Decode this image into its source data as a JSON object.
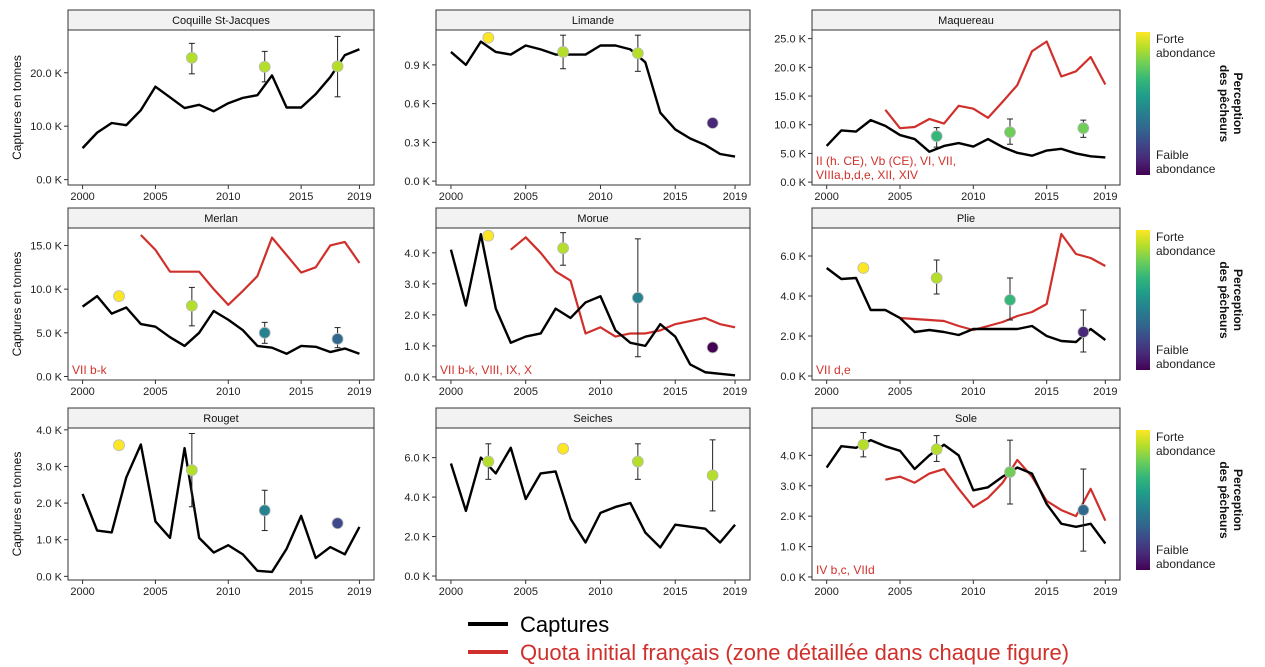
{
  "legend": {
    "captures_label": "Captures",
    "quota_label": "Quota initial français (zone détaillée dans chaque figure)",
    "captures_color": "#000000",
    "quota_color": "#d0302b",
    "colorbar_title": "Perception des pêcheurs",
    "colorbar_title_line1": "Perception",
    "colorbar_title_line2": "des pêcheurs",
    "colorbar_high": "Forte abondance",
    "colorbar_high_line1": "Forte",
    "colorbar_high_line2": "abondance",
    "colorbar_low": "Faible abondance",
    "colorbar_low_line1": "Faible",
    "colorbar_low_line2": "abondance",
    "colorbar_colors": [
      "#fde725",
      "#b5de2b",
      "#6ece58",
      "#35b779",
      "#1f9e89",
      "#26828e",
      "#31688e",
      "#3e4989",
      "#482878",
      "#440154"
    ]
  },
  "y_axis_label": "Captures en tonnes",
  "chart_data": [
    {
      "type": "line",
      "title": "Coquille St-Jacques",
      "zone": "",
      "x_ticks": [
        "2000",
        "2005",
        "2010",
        "2015",
        "2019"
      ],
      "y_ticks": [
        0,
        10000,
        20000
      ],
      "y_tick_labels": [
        "0.0 K",
        "10.0 K",
        "20.0 K"
      ],
      "ylim": [
        -1000,
        28000
      ],
      "captures": {
        "x": [
          2000,
          2001,
          2002,
          2003,
          2004,
          2005,
          2006,
          2007,
          2008,
          2009,
          2010,
          2011,
          2012,
          2013,
          2014,
          2015,
          2016,
          2017,
          2018,
          2019
        ],
        "values": [
          5900,
          8800,
          10600,
          10200,
          13000,
          17400,
          15400,
          13400,
          14000,
          12800,
          14300,
          15300,
          15800,
          19500,
          13500,
          13500,
          16000,
          19200,
          23300,
          24400
        ]
      },
      "quota": null,
      "perception": [
        {
          "x": 2007.5,
          "value": 22800,
          "low": 19800,
          "high": 25500,
          "level": 0.85
        },
        {
          "x": 2012.5,
          "value": 21100,
          "low": 18300,
          "high": 24000,
          "level": 0.85
        },
        {
          "x": 2017.5,
          "value": 21200,
          "low": 15500,
          "high": 26800,
          "level": 0.85
        }
      ]
    },
    {
      "type": "line",
      "title": "Limande",
      "zone": "",
      "x_ticks": [
        "2000",
        "2005",
        "2010",
        "2015",
        "2019"
      ],
      "y_ticks": [
        0,
        300,
        600,
        900
      ],
      "y_tick_labels": [
        "0.0 K",
        "0.3 K",
        "0.6 K",
        "0.9 K"
      ],
      "ylim": [
        -30,
        1170
      ],
      "captures": {
        "x": [
          2000,
          2001,
          2002,
          2003,
          2004,
          2005,
          2006,
          2007,
          2008,
          2009,
          2010,
          2011,
          2012,
          2013,
          2014,
          2015,
          2016,
          2017,
          2018,
          2019
        ],
        "values": [
          1000,
          900,
          1080,
          1000,
          980,
          1050,
          1020,
          980,
          980,
          980,
          1050,
          1050,
          1020,
          920,
          530,
          400,
          330,
          280,
          210,
          190
        ]
      },
      "quota": null,
      "perception": [
        {
          "x": 2002.5,
          "value": 1110,
          "low": null,
          "high": null,
          "level": 1.0
        },
        {
          "x": 2007.5,
          "value": 1000,
          "low": 870,
          "high": 1130,
          "level": 0.85
        },
        {
          "x": 2012.5,
          "value": 990,
          "low": 850,
          "high": 1130,
          "level": 0.85
        },
        {
          "x": 2017.5,
          "value": 450,
          "low": null,
          "high": null,
          "level": 0.1
        }
      ]
    },
    {
      "type": "line",
      "title": "Maquereau",
      "zone": "II (h. CE), Vb (CE), VI, VII, VIIIa,b,d,e, XII, XIV",
      "zone_line1": "II (h. CE), Vb (CE), VI, VII,",
      "zone_line2": "VIIIa,b,d,e, XII, XIV",
      "x_ticks": [
        "2000",
        "2005",
        "2010",
        "2015",
        "2019"
      ],
      "y_ticks": [
        0,
        5000,
        10000,
        15000,
        20000,
        25000
      ],
      "y_tick_labels": [
        "0.0 K",
        "5.0 K",
        "10.0 K",
        "15.0 K",
        "20.0 K",
        "25.0 K"
      ],
      "ylim": [
        -500,
        26500
      ],
      "captures": {
        "x": [
          2000,
          2001,
          2002,
          2003,
          2004,
          2005,
          2006,
          2007,
          2008,
          2009,
          2010,
          2011,
          2012,
          2013,
          2014,
          2015,
          2016,
          2017,
          2018,
          2019
        ],
        "values": [
          6300,
          9000,
          8800,
          10800,
          9800,
          8200,
          7500,
          5300,
          6300,
          6800,
          6200,
          7500,
          6100,
          5100,
          4600,
          5500,
          5800,
          5000,
          4500,
          4300
        ]
      },
      "quota": {
        "x": [
          2004,
          2005,
          2006,
          2007,
          2008,
          2009,
          2010,
          2011,
          2012,
          2013,
          2014,
          2015,
          2016,
          2017,
          2018,
          2019
        ],
        "values": [
          12600,
          9400,
          9600,
          11000,
          10200,
          13300,
          12800,
          11200,
          14000,
          16900,
          22800,
          24500,
          18400,
          19300,
          21800,
          17000
        ]
      },
      "perception": [
        {
          "x": 2007.5,
          "value": 8000,
          "low": 6100,
          "high": 9500,
          "level": 0.7
        },
        {
          "x": 2012.5,
          "value": 8700,
          "low": 6600,
          "high": 11000,
          "level": 0.75
        },
        {
          "x": 2017.5,
          "value": 9400,
          "low": 7800,
          "high": 10800,
          "level": 0.8
        }
      ]
    },
    {
      "type": "line",
      "title": "Merlan",
      "zone": "VII b-k",
      "x_ticks": [
        "2000",
        "2005",
        "2010",
        "2015",
        "2019"
      ],
      "y_ticks": [
        0,
        5000,
        10000,
        15000
      ],
      "y_tick_labels": [
        "0.0 K",
        "5.0 K",
        "10.0 K",
        "15.0 K"
      ],
      "ylim": [
        -400,
        17000
      ],
      "captures": {
        "x": [
          2000,
          2001,
          2002,
          2003,
          2004,
          2005,
          2006,
          2007,
          2008,
          2009,
          2010,
          2011,
          2012,
          2013,
          2014,
          2015,
          2016,
          2017,
          2018,
          2019
        ],
        "values": [
          8000,
          9200,
          7200,
          7900,
          6000,
          5700,
          4500,
          3500,
          5000,
          7500,
          6500,
          5300,
          3500,
          3300,
          2600,
          3500,
          3400,
          2800,
          3200,
          2600
        ]
      },
      "quota": {
        "x": [
          2004,
          2005,
          2006,
          2007,
          2008,
          2009,
          2010,
          2011,
          2012,
          2013,
          2014,
          2015,
          2016,
          2017,
          2018,
          2019
        ],
        "values": [
          16200,
          14500,
          12000,
          12000,
          12000,
          10000,
          8200,
          9800,
          11500,
          15900,
          13900,
          11900,
          12500,
          15000,
          15400,
          13000
        ]
      },
      "perception": [
        {
          "x": 2002.5,
          "value": 9200,
          "low": null,
          "high": null,
          "level": 1.0
        },
        {
          "x": 2007.5,
          "value": 8100,
          "low": 5800,
          "high": 10200,
          "level": 0.85
        },
        {
          "x": 2012.5,
          "value": 5000,
          "low": 3800,
          "high": 6200,
          "level": 0.45
        },
        {
          "x": 2017.5,
          "value": 4300,
          "low": 3300,
          "high": 5600,
          "level": 0.35
        }
      ]
    },
    {
      "type": "line",
      "title": "Morue",
      "zone": "VII b-k, VIII, IX, X",
      "x_ticks": [
        "2000",
        "2005",
        "2010",
        "2015",
        "2019"
      ],
      "y_ticks": [
        0,
        1000,
        2000,
        3000,
        4000
      ],
      "y_tick_labels": [
        "0.0 K",
        "1.0 K",
        "2.0 K",
        "3.0 K",
        "4.0 K"
      ],
      "ylim": [
        -100,
        4800
      ],
      "captures": {
        "x": [
          2000,
          2001,
          2002,
          2003,
          2004,
          2005,
          2006,
          2007,
          2008,
          2009,
          2010,
          2011,
          2012,
          2013,
          2014,
          2015,
          2016,
          2017,
          2018,
          2019
        ],
        "values": [
          4100,
          2300,
          4600,
          2200,
          1100,
          1300,
          1400,
          2200,
          1900,
          2400,
          2600,
          1500,
          1100,
          1000,
          1700,
          1300,
          400,
          150,
          100,
          50
        ]
      },
      "quota": {
        "x": [
          2004,
          2005,
          2006,
          2007,
          2008,
          2009,
          2010,
          2011,
          2012,
          2013,
          2014,
          2015,
          2016,
          2017,
          2018,
          2019
        ],
        "values": [
          4100,
          4500,
          4000,
          3400,
          3100,
          1400,
          1600,
          1300,
          1400,
          1400,
          1500,
          1700,
          1800,
          1900,
          1700,
          1600
        ]
      },
      "perception": [
        {
          "x": 2002.5,
          "value": 4550,
          "low": null,
          "high": null,
          "level": 1.0
        },
        {
          "x": 2007.5,
          "value": 4150,
          "low": 3600,
          "high": 4650,
          "level": 0.85
        },
        {
          "x": 2012.5,
          "value": 2550,
          "low": 650,
          "high": 4450,
          "level": 0.5
        },
        {
          "x": 2017.5,
          "value": 950,
          "low": null,
          "high": null,
          "level": 0.02
        }
      ]
    },
    {
      "type": "line",
      "title": "Plie",
      "zone": "VII d,e",
      "x_ticks": [
        "2000",
        "2005",
        "2010",
        "2015",
        "2019"
      ],
      "y_ticks": [
        0,
        2000,
        4000,
        6000
      ],
      "y_tick_labels": [
        "0.0 K",
        "2.0 K",
        "4.0 K",
        "6.0 K"
      ],
      "ylim": [
        -200,
        7400
      ],
      "captures": {
        "x": [
          2000,
          2001,
          2002,
          2003,
          2004,
          2005,
          2006,
          2007,
          2008,
          2009,
          2010,
          2011,
          2012,
          2013,
          2014,
          2015,
          2016,
          2017,
          2018,
          2019
        ],
        "values": [
          5400,
          4850,
          4900,
          3300,
          3300,
          2900,
          2200,
          2300,
          2200,
          2050,
          2350,
          2350,
          2350,
          2350,
          2500,
          2000,
          1750,
          1700,
          2350,
          1800
        ]
      },
      "quota": {
        "x": [
          2004,
          2005,
          2006,
          2007,
          2008,
          2009,
          2010,
          2011,
          2012,
          2013,
          2014,
          2015,
          2016,
          2017,
          2018,
          2019
        ],
        "values": [
          3300,
          2900,
          2850,
          2800,
          2750,
          2500,
          2300,
          2500,
          2700,
          3000,
          3200,
          3600,
          7100,
          6100,
          5900,
          5500
        ]
      },
      "perception": [
        {
          "x": 2002.5,
          "value": 5400,
          "low": null,
          "high": null,
          "level": 1.0
        },
        {
          "x": 2007.5,
          "value": 4900,
          "low": 4100,
          "high": 5800,
          "level": 0.85
        },
        {
          "x": 2012.5,
          "value": 3800,
          "low": 2800,
          "high": 4900,
          "level": 0.7
        },
        {
          "x": 2017.5,
          "value": 2200,
          "low": 1200,
          "high": 3300,
          "level": 0.15
        }
      ]
    },
    {
      "type": "line",
      "title": "Rouget",
      "zone": "",
      "x_ticks": [
        "2000",
        "2005",
        "2010",
        "2015",
        "2019"
      ],
      "y_ticks": [
        0,
        1000,
        2000,
        3000,
        4000
      ],
      "y_tick_labels": [
        "0.0 K",
        "1.0 K",
        "2.0 K",
        "3.0 K",
        "4.0 K"
      ],
      "ylim": [
        -100,
        4050
      ],
      "captures": {
        "x": [
          2000,
          2001,
          2002,
          2003,
          2004,
          2005,
          2006,
          2007,
          2008,
          2009,
          2010,
          2011,
          2012,
          2013,
          2014,
          2015,
          2016,
          2017,
          2018,
          2019
        ],
        "values": [
          2250,
          1250,
          1200,
          2700,
          3600,
          1500,
          1050,
          3500,
          1050,
          650,
          850,
          600,
          150,
          120,
          750,
          1650,
          500,
          800,
          600,
          1350
        ]
      },
      "quota": null,
      "perception": [
        {
          "x": 2002.5,
          "value": 3580,
          "low": null,
          "high": null,
          "level": 1.0
        },
        {
          "x": 2007.5,
          "value": 2900,
          "low": 1900,
          "high": 3900,
          "level": 0.85
        },
        {
          "x": 2012.5,
          "value": 1800,
          "low": 1250,
          "high": 2350,
          "level": 0.45
        },
        {
          "x": 2017.5,
          "value": 1450,
          "low": null,
          "high": null,
          "level": 0.2
        }
      ]
    },
    {
      "type": "line",
      "title": "Seiches",
      "zone": "",
      "x_ticks": [
        "2000",
        "2005",
        "2010",
        "2015",
        "2019"
      ],
      "y_ticks": [
        0,
        2000,
        4000,
        6000
      ],
      "y_tick_labels": [
        "0.0 K",
        "2.0 K",
        "4.0 K",
        "6.0 K"
      ],
      "ylim": [
        -200,
        7500
      ],
      "captures": {
        "x": [
          2000,
          2001,
          2002,
          2003,
          2004,
          2005,
          2006,
          2007,
          2008,
          2009,
          2010,
          2011,
          2012,
          2013,
          2014,
          2015,
          2016,
          2017,
          2018,
          2019
        ],
        "values": [
          5700,
          3300,
          6000,
          5200,
          6500,
          3900,
          5200,
          5300,
          2900,
          1700,
          3200,
          3500,
          3700,
          2200,
          1450,
          2600,
          2500,
          2400,
          1700,
          2600
        ]
      },
      "quota": null,
      "perception": [
        {
          "x": 2002.5,
          "value": 5800,
          "low": 4900,
          "high": 6700,
          "level": 0.85
        },
        {
          "x": 2007.5,
          "value": 6450,
          "low": null,
          "high": null,
          "level": 1.0
        },
        {
          "x": 2012.5,
          "value": 5800,
          "low": 4900,
          "high": 6700,
          "level": 0.85
        },
        {
          "x": 2017.5,
          "value": 5100,
          "low": 3300,
          "high": 6900,
          "level": 0.85
        }
      ]
    },
    {
      "type": "line",
      "title": "Sole",
      "zone": "IV b,c, VIId",
      "x_ticks": [
        "2000",
        "2005",
        "2010",
        "2015",
        "2019"
      ],
      "y_ticks": [
        0,
        1000,
        2000,
        3000,
        4000
      ],
      "y_tick_labels": [
        "0.0 K",
        "1.0 K",
        "2.0 K",
        "3.0 K",
        "4.0 K"
      ],
      "ylim": [
        -100,
        4900
      ],
      "captures": {
        "x": [
          2000,
          2001,
          2002,
          2003,
          2004,
          2005,
          2006,
          2007,
          2008,
          2009,
          2010,
          2011,
          2012,
          2013,
          2014,
          2015,
          2016,
          2017,
          2018,
          2019
        ],
        "values": [
          3600,
          4300,
          4250,
          4500,
          4300,
          4150,
          3550,
          4000,
          4350,
          4000,
          2850,
          2950,
          3300,
          3600,
          3400,
          2400,
          1750,
          1650,
          1750,
          1100
        ]
      },
      "quota": {
        "x": [
          2004,
          2005,
          2006,
          2007,
          2008,
          2009,
          2010,
          2011,
          2012,
          2013,
          2014,
          2015,
          2016,
          2017,
          2018,
          2019
        ],
        "values": [
          3200,
          3300,
          3100,
          3400,
          3550,
          2900,
          2300,
          2600,
          3100,
          3850,
          3300,
          2500,
          2200,
          2000,
          2900,
          1850
        ]
      },
      "perception": [
        {
          "x": 2002.5,
          "value": 4350,
          "low": 3950,
          "high": 4750,
          "level": 0.85
        },
        {
          "x": 2007.5,
          "value": 4200,
          "low": 3800,
          "high": 4650,
          "level": 0.85
        },
        {
          "x": 2012.5,
          "value": 3450,
          "low": 2400,
          "high": 4500,
          "level": 0.8
        },
        {
          "x": 2017.5,
          "value": 2200,
          "low": 850,
          "high": 3550,
          "level": 0.3
        }
      ]
    }
  ]
}
